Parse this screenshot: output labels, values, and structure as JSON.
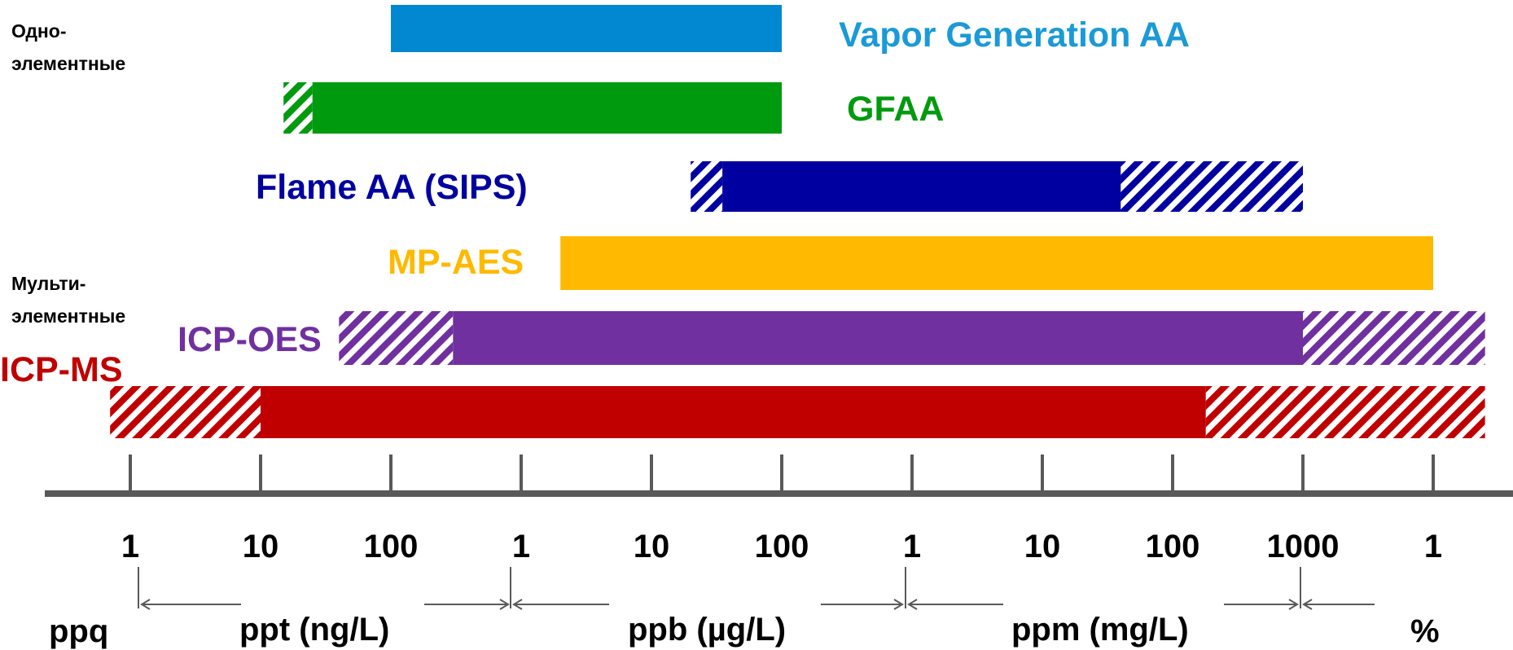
{
  "chart_data": {
    "type": "range-bar",
    "group_labels": {
      "single": [
        "Одно-",
        "элементные"
      ],
      "multi": [
        "Мульти-",
        "элементные"
      ]
    },
    "colors": {
      "vapor": "#0288d1",
      "gfaa": "#009a0f",
      "flame": "#0000a0",
      "mpaes": "#ffb900",
      "icpoes": "#7030a0",
      "icpms": "#c00000",
      "axis": "#595959"
    },
    "series": [
      {
        "name": "Vapor Generation AA",
        "key": "vapor",
        "solid": [
          100,
          100000
        ],
        "hatch_low": null,
        "hatch_high": null
      },
      {
        "name": "GFAA",
        "key": "gfaa",
        "solid": [
          25,
          100000
        ],
        "hatch_low": [
          15,
          25
        ],
        "hatch_high": null
      },
      {
        "name": "Flame AA (SIPS)",
        "key": "flame",
        "solid": [
          35000,
          40000000
        ],
        "hatch_low": [
          20000,
          35000
        ],
        "hatch_high": [
          40000000,
          1000000000
        ]
      },
      {
        "name": "MP-AES",
        "key": "mpaes",
        "solid": [
          2000,
          10000000000
        ],
        "hatch_low": null,
        "hatch_high": null
      },
      {
        "name": "ICP-OES",
        "key": "icpoes",
        "solid": [
          300,
          1000000000
        ],
        "hatch_low": [
          40,
          300
        ],
        "hatch_high": [
          1000000000,
          25000000000
        ]
      },
      {
        "name": "ICP-MS",
        "key": "icpms",
        "solid": [
          10,
          180000000
        ],
        "hatch_low": [
          0.7,
          10
        ],
        "hatch_high": [
          180000000,
          25000000000
        ]
      }
    ],
    "x_scale": "log",
    "x_unit": "ppq",
    "tick_values": [
      1,
      10,
      100,
      1000,
      10000,
      100000,
      1000000,
      10000000,
      100000000,
      1000000000,
      10000000000
    ],
    "tick_labels": [
      "1",
      "10",
      "100",
      "1",
      "10",
      "100",
      "1",
      "10",
      "100",
      "1000",
      "1"
    ],
    "unit_labels": [
      "ppq",
      "ppt (ng/L)",
      "ppb (µg/L)",
      "ppm (mg/L)",
      "%"
    ]
  }
}
